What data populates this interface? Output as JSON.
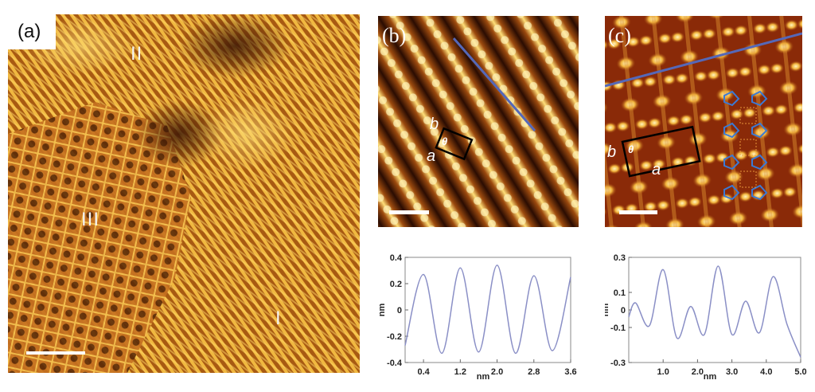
{
  "figure": {
    "panel_a": {
      "label": "(a)",
      "domain_labels": [
        "II",
        "III",
        "I"
      ]
    },
    "panel_b": {
      "label": "(b)",
      "cell_labels": {
        "a": "a",
        "b": "b",
        "theta": "θ"
      }
    },
    "panel_c": {
      "label": "(c)",
      "cell_labels": {
        "a": "a",
        "b": "b",
        "theta": "θ"
      }
    }
  },
  "chart_data": [
    {
      "type": "line",
      "xlabel": "nm",
      "ylabel": "nm",
      "xlim": [
        0.0,
        3.6
      ],
      "ylim": [
        -0.4,
        0.4
      ],
      "xticks": [
        "0.4",
        "1.2",
        "2.0",
        "2.8",
        "3.6"
      ],
      "yticks": [
        "0.4",
        "0.2",
        "0",
        "-0.2",
        "-0.4"
      ],
      "series": [
        {
          "color": "#8a8fc6",
          "x": [
            0.0,
            0.4,
            0.8,
            1.2,
            1.6,
            2.0,
            2.4,
            2.8,
            3.2,
            3.6
          ],
          "y": [
            -0.27,
            0.27,
            -0.33,
            0.32,
            -0.32,
            0.34,
            -0.33,
            0.26,
            -0.31,
            0.25
          ]
        }
      ]
    },
    {
      "type": "line",
      "xlabel": "nm",
      "ylabel": "nm",
      "xlim": [
        0.0,
        5.0
      ],
      "ylim": [
        -0.3,
        0.3
      ],
      "xticks": [
        "1.0",
        "2.0",
        "3.0",
        "4.0",
        "5.0"
      ],
      "yticks": [
        "0.3",
        "0.1",
        "0",
        "-0.1",
        "-0.3"
      ],
      "series": [
        {
          "color": "#8a8fc6",
          "x": [
            0.0,
            0.2,
            0.6,
            1.0,
            1.4,
            1.8,
            2.2,
            2.6,
            3.0,
            3.4,
            3.8,
            4.2,
            4.6,
            5.0
          ],
          "y": [
            -0.04,
            0.04,
            -0.09,
            0.23,
            -0.16,
            0.02,
            -0.14,
            0.25,
            -0.14,
            0.05,
            -0.13,
            0.19,
            -0.08,
            -0.27
          ]
        }
      ]
    }
  ]
}
